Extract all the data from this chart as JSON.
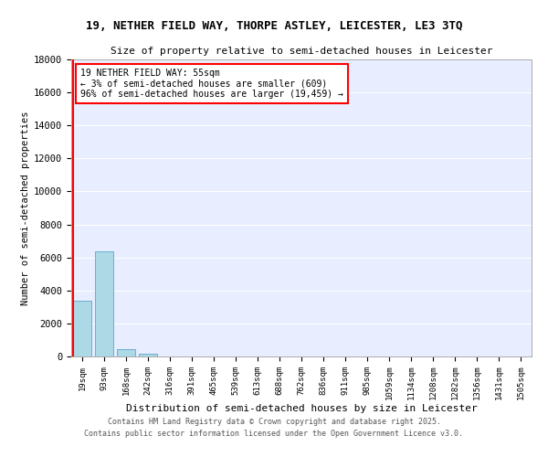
{
  "title_line1": "19, NETHER FIELD WAY, THORPE ASTLEY, LEICESTER, LE3 3TQ",
  "title_line2": "Size of property relative to semi-detached houses in Leicester",
  "xlabel": "Distribution of semi-detached houses by size in Leicester",
  "ylabel": "Number of semi-detached properties",
  "categories": [
    "19sqm",
    "93sqm",
    "168sqm",
    "242sqm",
    "316sqm",
    "391sqm",
    "465sqm",
    "539sqm",
    "613sqm",
    "688sqm",
    "762sqm",
    "836sqm",
    "911sqm",
    "985sqm",
    "1059sqm",
    "1134sqm",
    "1208sqm",
    "1282sqm",
    "1356sqm",
    "1431sqm",
    "1505sqm"
  ],
  "values": [
    3400,
    6350,
    430,
    150,
    0,
    0,
    0,
    0,
    0,
    0,
    0,
    0,
    0,
    0,
    0,
    0,
    0,
    0,
    0,
    0,
    0
  ],
  "bar_color": "#add8e6",
  "bar_edge_color": "#6baed6",
  "vline_color": "red",
  "annotation_title": "19 NETHER FIELD WAY: 55sqm",
  "annotation_line1": "← 3% of semi-detached houses are smaller (609)",
  "annotation_line2": "96% of semi-detached houses are larger (19,459) →",
  "ylim": [
    0,
    18000
  ],
  "yticks": [
    0,
    2000,
    4000,
    6000,
    8000,
    10000,
    12000,
    14000,
    16000,
    18000
  ],
  "background_color": "#e8eeff",
  "grid_color": "white",
  "footer_line1": "Contains HM Land Registry data © Crown copyright and database right 2025.",
  "footer_line2": "Contains public sector information licensed under the Open Government Licence v3.0."
}
